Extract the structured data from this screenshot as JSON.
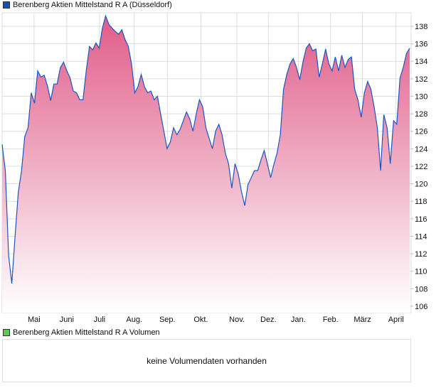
{
  "price_legend": "Berenberg Aktien Mittelstand R A (Düsseldorf)",
  "volume_legend": "Berenberg Aktien Mittelstand R A Volumen",
  "volume_message": "keine Volumendaten vorhanden",
  "colors": {
    "line": "#1a56c4",
    "fill_top": "#e05c88",
    "fill_bottom": "#ffffff",
    "price_swatch": "#1a4fb0",
    "volume_swatch": "#5cc85c",
    "grid": "#dddddd"
  },
  "chart_data": {
    "type": "area",
    "title": "Berenberg Aktien Mittelstand R A (Düsseldorf)",
    "xlabel": "",
    "ylabel": "",
    "ylim": [
      105,
      140
    ],
    "yticks": [
      106,
      108,
      110,
      112,
      114,
      116,
      118,
      120,
      122,
      124,
      126,
      128,
      130,
      132,
      134,
      136,
      138
    ],
    "xticks": [
      {
        "label": "Mai",
        "pos": 0.078
      },
      {
        "label": "Juni",
        "pos": 0.158
      },
      {
        "label": "Juli",
        "pos": 0.238
      },
      {
        "label": "Aug.",
        "pos": 0.323
      },
      {
        "label": "Sep.",
        "pos": 0.404
      },
      {
        "label": "Okt.",
        "pos": 0.486
      },
      {
        "label": "Nov.",
        "pos": 0.574
      },
      {
        "label": "Dez.",
        "pos": 0.651
      },
      {
        "label": "Jan.",
        "pos": 0.724
      },
      {
        "label": "Feb.",
        "pos": 0.803
      },
      {
        "label": "März",
        "pos": 0.881
      },
      {
        "label": "April",
        "pos": 0.963
      }
    ],
    "grid": true,
    "values": [
      124.5,
      121.5,
      111.8,
      108.6,
      114,
      119,
      121.5,
      125.4,
      126.4,
      130.4,
      129.2,
      132.9,
      132.2,
      132.4,
      131.2,
      129.5,
      131.4,
      131.4,
      133.3,
      133.9,
      132.9,
      132.1,
      130.6,
      130.4,
      129.6,
      129.6,
      132.9,
      135.7,
      135.3,
      136.1,
      135.5,
      137.8,
      139.2,
      138.2,
      137.8,
      137.4,
      137.1,
      137.6,
      136.5,
      135.7,
      133.7,
      130.4,
      131.1,
      132.5,
      131.1,
      130.4,
      130.6,
      129.6,
      130,
      128,
      126,
      124,
      124.8,
      126.4,
      125.6,
      126.2,
      127.2,
      128.2,
      127.4,
      126,
      128,
      129.6,
      128.8,
      126.4,
      125.2,
      124,
      126,
      126.8,
      125.6,
      123.5,
      122.3,
      119.5,
      122.3,
      121.1,
      119.1,
      117.5,
      119.9,
      120.7,
      121.5,
      121.5,
      122.7,
      123.8,
      122.3,
      120.7,
      122.2,
      123.5,
      125.6,
      130.8,
      132.5,
      133.7,
      134.3,
      133.3,
      131.9,
      133.9,
      135.5,
      136,
      135.2,
      135.4,
      132.2,
      133.7,
      135.4,
      133.7,
      132.9,
      134.5,
      132.9,
      134.7,
      133.3,
      134.2,
      134.5,
      130.8,
      129.6,
      127.6,
      130.4,
      131.7,
      130.8,
      128.8,
      126.4,
      121.5,
      127.9,
      126.4,
      122.3,
      127.2,
      126.8,
      132.1,
      133.3,
      134.9,
      135.5
    ]
  }
}
